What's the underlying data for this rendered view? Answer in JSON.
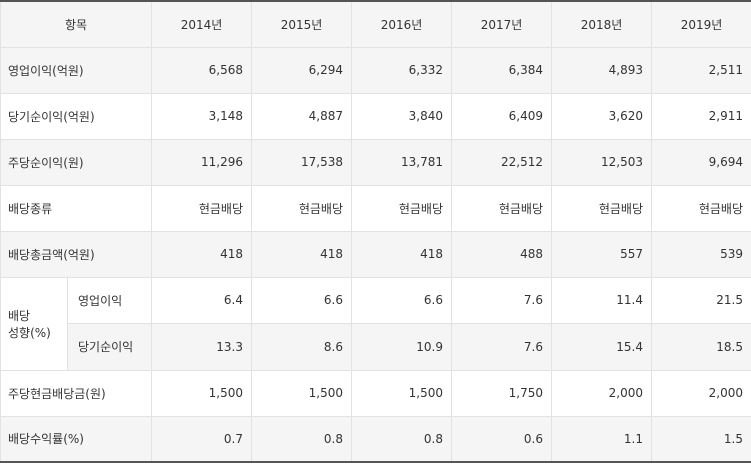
{
  "table": {
    "header": {
      "label": "항목",
      "years": [
        "2014년",
        "2015년",
        "2016년",
        "2017년",
        "2018년",
        "2019년"
      ]
    },
    "rows": [
      {
        "label": "영업이익(억원)",
        "values": [
          "6,568",
          "6,294",
          "6,332",
          "6,384",
          "4,893",
          "2,511"
        ]
      },
      {
        "label": "당기순이익(억원)",
        "values": [
          "3,148",
          "4,887",
          "3,840",
          "6,409",
          "3,620",
          "2,911"
        ]
      },
      {
        "label": "주당순이익(원)",
        "values": [
          "11,296",
          "17,538",
          "13,781",
          "22,512",
          "12,503",
          "9,694"
        ]
      },
      {
        "label": "배당종류",
        "values": [
          "현금배당",
          "현금배당",
          "현금배당",
          "현금배당",
          "현금배당",
          "현금배당"
        ]
      },
      {
        "label": "배당총금액(억원)",
        "values": [
          "418",
          "418",
          "418",
          "488",
          "557",
          "539"
        ]
      }
    ],
    "payout": {
      "group_label_line1": "배당",
      "group_label_line2": "성향(%)",
      "rows": [
        {
          "label": "영업이익",
          "values": [
            "6.4",
            "6.6",
            "6.6",
            "7.6",
            "11.4",
            "21.5"
          ]
        },
        {
          "label": "당기순이익",
          "values": [
            "13.3",
            "8.6",
            "10.9",
            "7.6",
            "15.4",
            "18.5"
          ]
        }
      ]
    },
    "tail_rows": [
      {
        "label": "주당현금배당금(원)",
        "values": [
          "1,500",
          "1,500",
          "1,500",
          "1,750",
          "2,000",
          "2,000"
        ]
      },
      {
        "label": "배당수익률(%)",
        "values": [
          "0.7",
          "0.8",
          "0.8",
          "0.6",
          "1.1",
          "1.5"
        ]
      }
    ]
  }
}
